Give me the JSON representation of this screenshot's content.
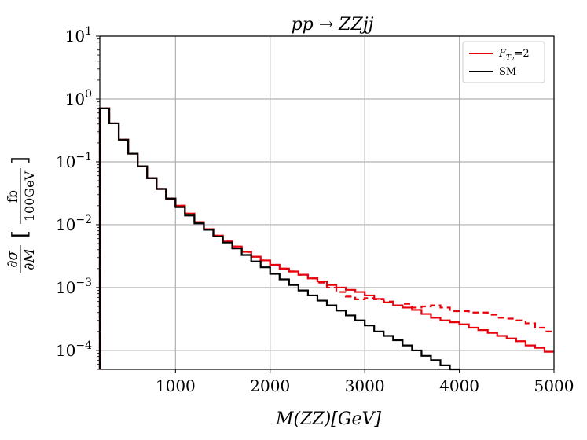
{
  "chart_data": {
    "type": "line",
    "title": "pp → ZZjj",
    "xlabel": "M(ZZ)[GeV]",
    "ylabel": "∂σ/∂M [fb/100GeV]",
    "ylabel_num": "∂σ",
    "ylabel_den": "∂M",
    "ylabel_unit_num": "fb",
    "ylabel_unit_den": "100GeV",
    "xlim": [
      200,
      5000
    ],
    "ylim": [
      5e-05,
      10
    ],
    "yscale": "log",
    "grid": true,
    "legend_position": "top-right",
    "x_ticks": [
      1000,
      2000,
      3000,
      4000,
      5000
    ],
    "x_tick_labels": [
      "1000",
      "2000",
      "3000",
      "4000",
      "5000"
    ],
    "y_ticks": [
      0.0001,
      0.001,
      0.01,
      0.1,
      1,
      10
    ],
    "y_tick_labels": [
      {
        "base": "10",
        "exp": "−4"
      },
      {
        "base": "10",
        "exp": "−3"
      },
      {
        "base": "10",
        "exp": "−2"
      },
      {
        "base": "10",
        "exp": "−1"
      },
      {
        "base": "10",
        "exp": "0"
      },
      {
        "base": "10",
        "exp": "1"
      }
    ],
    "bin_edges": [
      200,
      300,
      400,
      500,
      600,
      700,
      800,
      900,
      1000,
      1100,
      1200,
      1300,
      1400,
      1500,
      1600,
      1700,
      1800,
      1900,
      2000,
      2100,
      2200,
      2300,
      2400,
      2500,
      2600,
      2700,
      2800,
      2900,
      3000,
      3100,
      3200,
      3300,
      3400,
      3500,
      3600,
      3700,
      3800,
      3900,
      4000,
      4100,
      4200,
      4300,
      4400,
      4500,
      4600,
      4700,
      4800,
      4900,
      5000
    ],
    "series": [
      {
        "name": "SM",
        "color": "#000000",
        "dashed": false,
        "values": [
          0.71,
          0.41,
          0.225,
          0.135,
          0.085,
          0.055,
          0.037,
          0.026,
          0.019,
          0.014,
          0.0105,
          0.0083,
          0.0065,
          0.0052,
          0.0042,
          0.0033,
          0.0026,
          0.0021,
          0.00165,
          0.00135,
          0.0011,
          0.0009,
          0.00075,
          0.00062,
          0.00052,
          0.00043,
          0.00036,
          0.0003,
          0.00025,
          0.0002,
          0.00017,
          0.000145,
          0.00012,
          0.0001,
          8.2e-05,
          7e-05,
          5.8e-05,
          5e-05
        ]
      },
      {
        "name": "F_T2=2 (solid)",
        "color": "#e8000b",
        "dashed": false,
        "values": [
          0.71,
          0.41,
          0.225,
          0.135,
          0.085,
          0.055,
          0.037,
          0.026,
          0.02,
          0.015,
          0.011,
          0.0085,
          0.0067,
          0.0054,
          0.0045,
          0.0037,
          0.0031,
          0.0027,
          0.0023,
          0.002,
          0.0018,
          0.0016,
          0.0014,
          0.00125,
          0.0011,
          0.001,
          0.00092,
          0.00085,
          0.00075,
          0.00066,
          0.00058,
          0.00052,
          0.00048,
          0.00044,
          0.00038,
          0.00033,
          0.0003,
          0.00028,
          0.00026,
          0.00023,
          0.00021,
          0.00019,
          0.00017,
          0.000155,
          0.00014,
          0.00012,
          0.00011,
          9.5e-05
        ]
      },
      {
        "name": "F_T2=2 (dashed)",
        "color": "#e8000b",
        "dashed": true,
        "values": [
          0.71,
          0.41,
          0.225,
          0.135,
          0.085,
          0.055,
          0.037,
          0.026,
          0.02,
          0.015,
          0.011,
          0.0085,
          0.0067,
          0.0054,
          0.0045,
          0.0037,
          0.0031,
          0.0027,
          0.0023,
          0.002,
          0.0018,
          0.0016,
          0.0014,
          0.0012,
          0.001,
          0.00085,
          0.00072,
          0.00065,
          0.00068,
          0.00065,
          0.0006,
          0.00052,
          0.00055,
          0.00048,
          0.0005,
          0.00052,
          0.00048,
          0.00042,
          0.00042,
          0.0004,
          0.0004,
          0.00037,
          0.00033,
          0.00032,
          0.0003,
          0.00027,
          0.00023,
          0.0002
        ]
      }
    ],
    "legend": [
      {
        "label_main": "F",
        "label_sub": "T",
        "label_subsub": "2",
        "label_rest": "=2",
        "color": "#e8000b"
      },
      {
        "label_main": "SM",
        "color": "#000000"
      }
    ]
  }
}
